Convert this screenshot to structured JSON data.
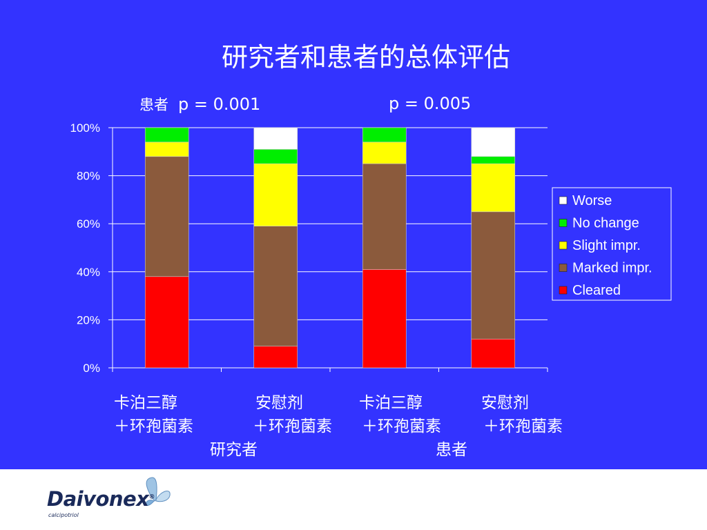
{
  "slide": {
    "title": "研究者和患者的总体评估",
    "p_label": "患者",
    "p_value_1": "p = 0.001",
    "p_value_2": "p = 0.005",
    "group_label_1": "研究者",
    "group_label_2": "患者",
    "background_color": "#3333ff"
  },
  "chart_data": {
    "type": "bar",
    "stacked": true,
    "percent": true,
    "categories": [
      [
        "卡泊三醇",
        "＋环孢菌素"
      ],
      [
        "安慰剂",
        "＋环孢菌素"
      ],
      [
        "卡泊三醇",
        "＋环孢菌素"
      ],
      [
        "安慰剂",
        "＋环孢菌素"
      ]
    ],
    "groups": [
      "研究者",
      "患者"
    ],
    "ylim": [
      0,
      100
    ],
    "yticks": [
      "0%",
      "20%",
      "40%",
      "60%",
      "80%",
      "100%"
    ],
    "grid": true,
    "legend_position": "right",
    "series": [
      {
        "name": "Cleared",
        "color": "#ff0000",
        "values": [
          38,
          9,
          41,
          12
        ]
      },
      {
        "name": "Marked impr.",
        "color": "#8b5a3c",
        "values": [
          50,
          50,
          44,
          53
        ]
      },
      {
        "name": "Slight impr.",
        "color": "#ffff00",
        "values": [
          6,
          26,
          9,
          20
        ]
      },
      {
        "name": "No change",
        "color": "#00ee00",
        "values": [
          6,
          6,
          6,
          3
        ]
      },
      {
        "name": "Worse",
        "color": "#ffffff",
        "values": [
          0,
          9,
          0,
          12
        ]
      }
    ]
  },
  "footer": {
    "brand": "Daivonex",
    "brand_sub": "calcipotriol",
    "brand_color": "#1a2a5a"
  }
}
